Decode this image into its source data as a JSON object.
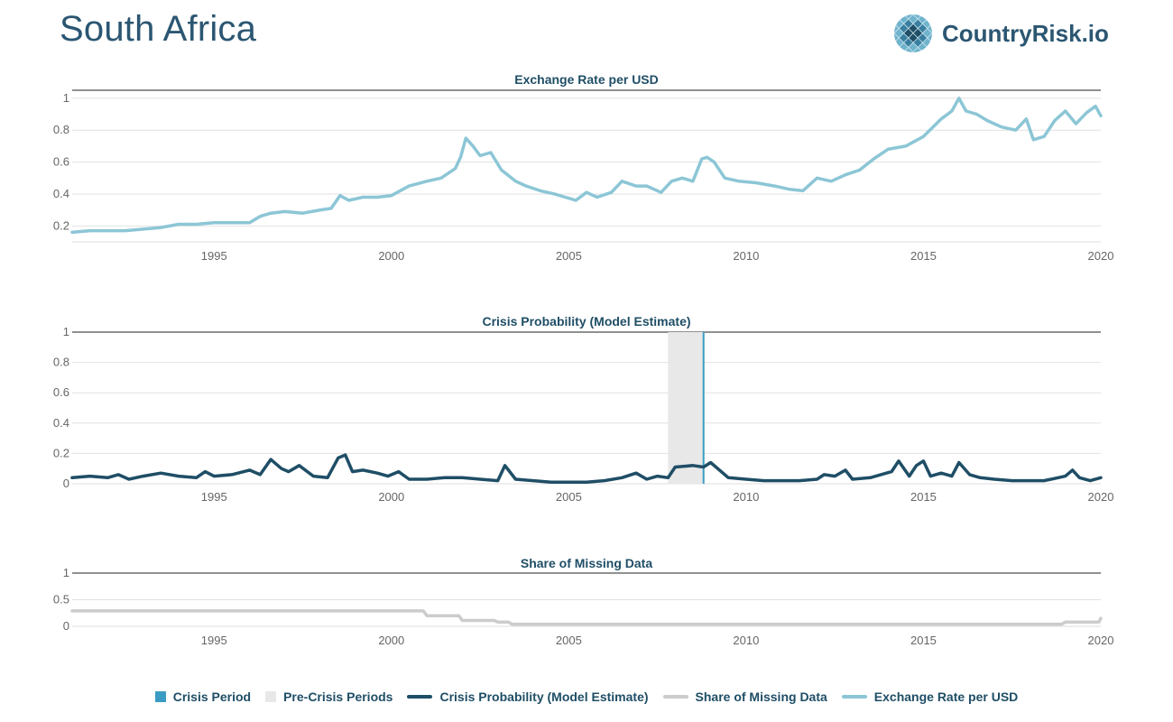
{
  "header": {
    "title": "South Africa",
    "logo_text": "CountryRisk.io"
  },
  "colors": {
    "exchange": "#8cc6d6",
    "crisis_prob": "#1f4e66",
    "missing": "#cccccc",
    "crisis_period": "#3a9cc4",
    "pre_crisis": "#e8e8e8",
    "title_text": "#1f4e66"
  },
  "legend": [
    {
      "label": "Crisis Period",
      "kind": "square",
      "color_key": "crisis_period",
      "icon": "crisis-period-swatch-icon"
    },
    {
      "label": "Pre-Crisis Periods",
      "kind": "square",
      "color_key": "pre_crisis",
      "icon": "pre-crisis-swatch-icon"
    },
    {
      "label": "Crisis Probability (Model Estimate)",
      "kind": "line",
      "color_key": "crisis_prob",
      "icon": "crisis-prob-line-icon"
    },
    {
      "label": "Share of Missing Data",
      "kind": "line",
      "color_key": "missing",
      "icon": "missing-data-line-icon"
    },
    {
      "label": "Exchange Rate per USD",
      "kind": "line",
      "color_key": "exchange",
      "icon": "exchange-rate-line-icon"
    }
  ],
  "chart_data": [
    {
      "id": "exchange",
      "type": "line",
      "title": "Exchange Rate per USD",
      "xlabel": "",
      "ylabel": "",
      "xlim": [
        1991,
        2020
      ],
      "ylim": [
        0.1,
        1.05
      ],
      "xticks": [
        "1995",
        "2000",
        "2005",
        "2010",
        "2015",
        "2020"
      ],
      "yticks": [
        "0.2",
        "0.4",
        "0.6",
        "0.8",
        "1"
      ],
      "series": [
        {
          "name": "Exchange Rate per USD",
          "x": [
            1991.0,
            1991.5,
            1992.0,
            1992.5,
            1993.0,
            1993.5,
            1994.0,
            1994.5,
            1995.0,
            1995.5,
            1996.0,
            1996.3,
            1996.6,
            1997.0,
            1997.5,
            1998.0,
            1998.3,
            1998.55,
            1998.8,
            1999.2,
            1999.6,
            2000.0,
            2000.5,
            2001.0,
            2001.4,
            2001.8,
            2001.95,
            2002.1,
            2002.3,
            2002.5,
            2002.8,
            2003.1,
            2003.5,
            2003.8,
            2004.2,
            2004.6,
            2004.9,
            2005.2,
            2005.5,
            2005.8,
            2006.2,
            2006.5,
            2006.9,
            2007.2,
            2007.6,
            2007.9,
            2008.2,
            2008.5,
            2008.75,
            2008.9,
            2009.1,
            2009.4,
            2009.8,
            2010.3,
            2010.8,
            2011.2,
            2011.6,
            2012.0,
            2012.4,
            2012.8,
            2013.2,
            2013.6,
            2014.0,
            2014.5,
            2015.0,
            2015.5,
            2015.8,
            2016.0,
            2016.2,
            2016.5,
            2016.8,
            2017.2,
            2017.6,
            2017.9,
            2018.1,
            2018.4,
            2018.7,
            2019.0,
            2019.3,
            2019.6,
            2019.85,
            2020.0
          ],
          "values": [
            0.16,
            0.17,
            0.17,
            0.17,
            0.18,
            0.19,
            0.21,
            0.21,
            0.22,
            0.22,
            0.22,
            0.26,
            0.28,
            0.29,
            0.28,
            0.3,
            0.31,
            0.39,
            0.36,
            0.38,
            0.38,
            0.39,
            0.45,
            0.48,
            0.5,
            0.56,
            0.63,
            0.75,
            0.7,
            0.64,
            0.66,
            0.55,
            0.48,
            0.45,
            0.42,
            0.4,
            0.38,
            0.36,
            0.41,
            0.38,
            0.41,
            0.48,
            0.45,
            0.45,
            0.41,
            0.48,
            0.5,
            0.48,
            0.62,
            0.63,
            0.6,
            0.5,
            0.48,
            0.47,
            0.45,
            0.43,
            0.42,
            0.5,
            0.48,
            0.52,
            0.55,
            0.62,
            0.68,
            0.7,
            0.76,
            0.87,
            0.92,
            1.0,
            0.92,
            0.9,
            0.86,
            0.82,
            0.8,
            0.87,
            0.74,
            0.76,
            0.86,
            0.92,
            0.84,
            0.91,
            0.95,
            0.89
          ]
        }
      ]
    },
    {
      "id": "crisis",
      "type": "line",
      "title": "Crisis Probability (Model Estimate)",
      "xlabel": "",
      "ylabel": "",
      "xlim": [
        1991,
        2020
      ],
      "ylim": [
        0,
        1
      ],
      "xticks": [
        "1995",
        "2000",
        "2005",
        "2010",
        "2015",
        "2020"
      ],
      "yticks": [
        "0",
        "0.2",
        "0.4",
        "0.6",
        "0.8",
        "1"
      ],
      "pre_crisis_periods": [
        [
          2007.8,
          2008.8
        ]
      ],
      "crisis_periods": [
        2008.8
      ],
      "series": [
        {
          "name": "Crisis Probability (Model Estimate)",
          "x": [
            1991.0,
            1991.5,
            1992.0,
            1992.3,
            1992.6,
            1993.0,
            1993.5,
            1994.0,
            1994.5,
            1994.75,
            1995.0,
            1995.5,
            1996.0,
            1996.3,
            1996.6,
            1996.9,
            1997.1,
            1997.4,
            1997.8,
            1998.2,
            1998.5,
            1998.7,
            1998.9,
            1999.2,
            1999.6,
            1999.9,
            2000.2,
            2000.5,
            2001.0,
            2001.5,
            2002.0,
            2002.5,
            2003.0,
            2003.2,
            2003.5,
            2004.0,
            2004.5,
            2005.0,
            2005.5,
            2006.0,
            2006.5,
            2006.9,
            2007.2,
            2007.5,
            2007.8,
            2008.0,
            2008.5,
            2008.8,
            2009.0,
            2009.5,
            2010.0,
            2010.5,
            2011.0,
            2011.5,
            2012.0,
            2012.2,
            2012.5,
            2012.8,
            2013.0,
            2013.5,
            2013.8,
            2014.1,
            2014.3,
            2014.6,
            2014.8,
            2015.0,
            2015.2,
            2015.5,
            2015.8,
            2016.0,
            2016.3,
            2016.6,
            2017.0,
            2017.5,
            2018.0,
            2018.4,
            2018.8,
            2019.0,
            2019.2,
            2019.4,
            2019.7,
            2020.0
          ],
          "values": [
            0.04,
            0.05,
            0.04,
            0.06,
            0.03,
            0.05,
            0.07,
            0.05,
            0.04,
            0.08,
            0.05,
            0.06,
            0.09,
            0.06,
            0.16,
            0.1,
            0.08,
            0.12,
            0.05,
            0.04,
            0.17,
            0.19,
            0.08,
            0.09,
            0.07,
            0.05,
            0.08,
            0.03,
            0.03,
            0.04,
            0.04,
            0.03,
            0.02,
            0.12,
            0.03,
            0.02,
            0.01,
            0.01,
            0.01,
            0.02,
            0.04,
            0.07,
            0.03,
            0.05,
            0.04,
            0.11,
            0.12,
            0.11,
            0.14,
            0.04,
            0.03,
            0.02,
            0.02,
            0.02,
            0.03,
            0.06,
            0.05,
            0.09,
            0.03,
            0.04,
            0.06,
            0.08,
            0.15,
            0.05,
            0.12,
            0.15,
            0.05,
            0.07,
            0.05,
            0.14,
            0.06,
            0.04,
            0.03,
            0.02,
            0.02,
            0.02,
            0.04,
            0.05,
            0.09,
            0.04,
            0.02,
            0.04
          ]
        }
      ]
    },
    {
      "id": "missing",
      "type": "line",
      "title": "Share of Missing Data",
      "xlabel": "",
      "ylabel": "",
      "xlim": [
        1991,
        2020
      ],
      "ylim": [
        0,
        1
      ],
      "xticks": [
        "1995",
        "2000",
        "2005",
        "2010",
        "2015",
        "2020"
      ],
      "yticks": [
        "0",
        "0.5",
        "1"
      ],
      "series": [
        {
          "name": "Share of Missing Data",
          "x": [
            1991.0,
            2000.9,
            2001.0,
            2001.9,
            2002.0,
            2002.9,
            2003.0,
            2003.3,
            2003.4,
            2018.9,
            2019.0,
            2019.95,
            2020.0
          ],
          "values": [
            0.29,
            0.29,
            0.2,
            0.2,
            0.11,
            0.11,
            0.08,
            0.08,
            0.04,
            0.04,
            0.08,
            0.08,
            0.15
          ]
        }
      ]
    }
  ]
}
